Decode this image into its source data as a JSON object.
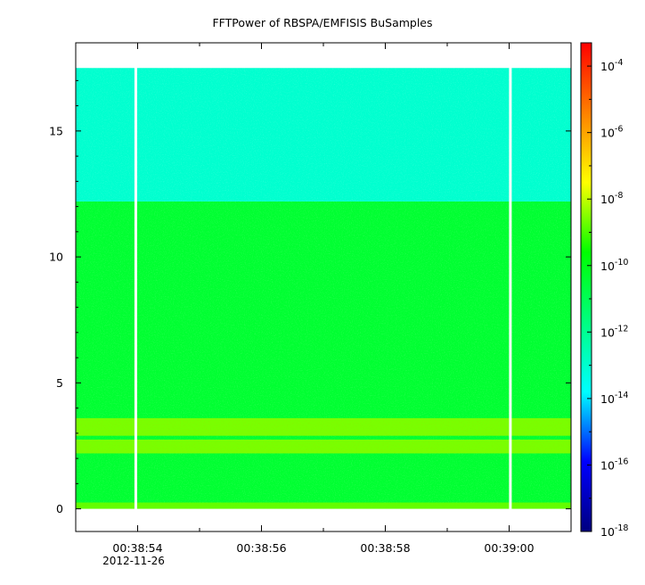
{
  "chart_data": {
    "type": "heatmap",
    "title": "FFTPower of RBSPA/EMFISIS  BuSamples",
    "xlabel": "",
    "ylabel": "",
    "x_ticks": [
      {
        "value": 54,
        "label": "00:38:54"
      },
      {
        "value": 56,
        "label": "00:38:56"
      },
      {
        "value": 58,
        "label": "00:38:58"
      },
      {
        "value": 60,
        "label": "00:39:00"
      }
    ],
    "x_date_label": "2012-11-26",
    "xlim": [
      53.0,
      61.0
    ],
    "ylim": [
      -0.9,
      18.5
    ],
    "y_ticks": [
      0,
      5,
      10,
      15
    ],
    "data_y_range": [
      0,
      17.5
    ],
    "gaps_x": [
      53.97,
      60.02
    ],
    "bands": [
      {
        "y0": 12.2,
        "y1": 17.5,
        "level": -13.0
      },
      {
        "y0": 0.1,
        "y1": 12.2,
        "level": -10.4
      },
      {
        "y0": 2.9,
        "y1": 3.6,
        "level": -8.6
      },
      {
        "y0": 2.2,
        "y1": 2.75,
        "level": -8.6
      },
      {
        "y0": 0,
        "y1": 0.25,
        "level": -8.8
      }
    ],
    "colorbar": {
      "scale": "log",
      "range_exp": [
        -18,
        -3.3
      ],
      "tick_exps": [
        -18,
        -16,
        -14,
        -12,
        -10,
        -8,
        -6,
        -4
      ],
      "base": "10",
      "colors": [
        "#00007f",
        "#0000ff",
        "#00ffff",
        "#00ff80",
        "#00ff00",
        "#ffff00",
        "#ff8000",
        "#ff0000"
      ]
    }
  }
}
